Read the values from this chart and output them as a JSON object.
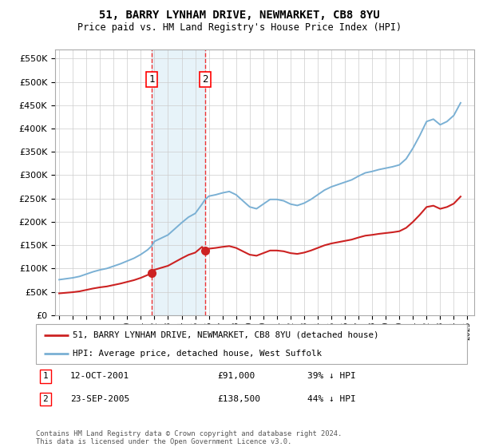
{
  "title": "51, BARRY LYNHAM DRIVE, NEWMARKET, CB8 8YU",
  "subtitle": "Price paid vs. HM Land Registry's House Price Index (HPI)",
  "hpi_years": [
    1995.0,
    1995.5,
    1996.0,
    1996.5,
    1997.0,
    1997.5,
    1998.0,
    1998.5,
    1999.0,
    1999.5,
    2000.0,
    2000.5,
    2001.0,
    2001.5,
    2001.79,
    2002.0,
    2002.5,
    2003.0,
    2003.5,
    2004.0,
    2004.5,
    2005.0,
    2005.5,
    2005.73,
    2006.0,
    2006.5,
    2007.0,
    2007.5,
    2008.0,
    2008.5,
    2009.0,
    2009.5,
    2010.0,
    2010.5,
    2011.0,
    2011.5,
    2012.0,
    2012.5,
    2013.0,
    2013.5,
    2014.0,
    2014.5,
    2015.0,
    2015.5,
    2016.0,
    2016.5,
    2017.0,
    2017.5,
    2018.0,
    2018.5,
    2019.0,
    2019.5,
    2020.0,
    2020.5,
    2021.0,
    2021.5,
    2022.0,
    2022.5,
    2023.0,
    2023.5,
    2024.0,
    2024.5
  ],
  "hpi_values": [
    76000,
    78000,
    80000,
    83000,
    88000,
    93000,
    97000,
    100000,
    105000,
    110000,
    116000,
    122000,
    130000,
    140000,
    148000,
    158000,
    165000,
    172000,
    185000,
    198000,
    210000,
    218000,
    238000,
    248000,
    255000,
    258000,
    262000,
    265000,
    258000,
    245000,
    232000,
    228000,
    238000,
    248000,
    248000,
    245000,
    238000,
    235000,
    240000,
    248000,
    258000,
    268000,
    275000,
    280000,
    285000,
    290000,
    298000,
    305000,
    308000,
    312000,
    315000,
    318000,
    322000,
    335000,
    358000,
    385000,
    415000,
    420000,
    408000,
    415000,
    428000,
    455000
  ],
  "sale1_year": 2001.79,
  "sale1_price": 91000,
  "sale1_label": "1",
  "sale1_date": "12-OCT-2001",
  "sale1_amount": "£91,000",
  "sale1_pct": "39% ↓ HPI",
  "sale2_year": 2005.73,
  "sale2_price": 138500,
  "sale2_label": "2",
  "sale2_date": "23-SEP-2005",
  "sale2_amount": "£138,500",
  "sale2_pct": "44% ↓ HPI",
  "hpi_color": "#7ab0d4",
  "price_color": "#cc2222",
  "vline_color": "#ee3333",
  "marker_color": "#cc2222",
  "ylim_max": 570000,
  "xlim_left": 1994.7,
  "xlim_right": 2025.5,
  "legend_line1": "51, BARRY LYNHAM DRIVE, NEWMARKET, CB8 8YU (detached house)",
  "legend_line2": "HPI: Average price, detached house, West Suffolk",
  "footnote": "Contains HM Land Registry data © Crown copyright and database right 2024.\nThis data is licensed under the Open Government Licence v3.0.",
  "background_color": "#ffffff",
  "grid_color": "#cccccc",
  "span_color": "#d0e8f5"
}
